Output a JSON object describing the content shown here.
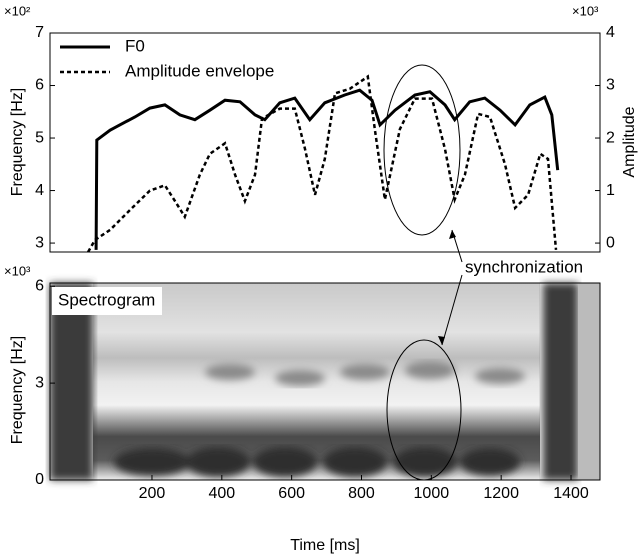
{
  "chart_data": [
    {
      "type": "line",
      "ylabel": "Frequency [Hz]",
      "y2label": "Amplitude",
      "y_multiplier": "×10²",
      "y2_multiplier": "×10³",
      "xlim": [
        -92,
        1483
      ],
      "ylim": [
        2.83,
        7.0
      ],
      "yticks": [
        3,
        4,
        5,
        6,
        7
      ],
      "y2lim": [
        -0.17,
        4.0
      ],
      "y2ticks": [
        0,
        1,
        2,
        3,
        4
      ],
      "legend": "upper left",
      "annotation": "synchronization",
      "series": [
        {
          "name": "F0",
          "color": "#000000",
          "style": "solid",
          "x": [
            40,
            42,
            80,
            108,
            151,
            194,
            237,
            280,
            323,
            366,
            409,
            452,
            495,
            523,
            566,
            609,
            652,
            695,
            752,
            795,
            830,
            853,
            896,
            953,
            996,
            1039,
            1067,
            1110,
            1153,
            1197,
            1240,
            1282,
            1325,
            1345,
            1362
          ],
          "values": [
            2.87,
            4.96,
            5.15,
            5.25,
            5.4,
            5.57,
            5.63,
            5.44,
            5.35,
            5.53,
            5.72,
            5.69,
            5.44,
            5.35,
            5.67,
            5.76,
            5.35,
            5.67,
            5.82,
            5.91,
            5.72,
            5.25,
            5.53,
            5.82,
            5.88,
            5.63,
            5.35,
            5.69,
            5.76,
            5.53,
            5.25,
            5.63,
            5.78,
            5.44,
            4.39
          ]
        },
        {
          "name": "Amplitude envelope",
          "color": "#000000",
          "style": "dashed",
          "axis": "y2",
          "x": [
            17,
            37,
            80,
            137,
            194,
            237,
            266,
            294,
            337,
            366,
            409,
            438,
            466,
            495,
            515,
            566,
            609,
            638,
            667,
            695,
            724,
            767,
            818,
            838,
            867,
            910,
            953,
            1002,
            1039,
            1067,
            1096,
            1134,
            1168,
            1211,
            1240,
            1277,
            1312,
            1334,
            1348,
            1357
          ],
          "values": [
            -0.17,
            0.06,
            0.25,
            0.63,
            1.0,
            1.1,
            0.8,
            0.5,
            1.3,
            1.7,
            1.9,
            1.3,
            0.8,
            1.3,
            2.37,
            2.56,
            2.56,
            1.8,
            0.92,
            1.6,
            2.85,
            2.94,
            3.17,
            2.17,
            0.83,
            2.17,
            2.75,
            2.75,
            1.79,
            0.83,
            1.3,
            2.46,
            2.4,
            1.5,
            0.67,
            0.92,
            1.7,
            1.6,
            0.54,
            -0.13
          ]
        }
      ]
    },
    {
      "type": "spectrogram",
      "label": "Spectrogram",
      "ylabel": "Frequency [Hz]",
      "xlabel": "Time [ms]",
      "y_multiplier": "×10³",
      "xlim": [
        -92,
        1483
      ],
      "xticks": [
        200,
        400,
        600,
        800,
        1000,
        1200,
        1400
      ],
      "ylim": [
        0,
        6.1
      ],
      "yticks": [
        0,
        3,
        6
      ]
    }
  ]
}
